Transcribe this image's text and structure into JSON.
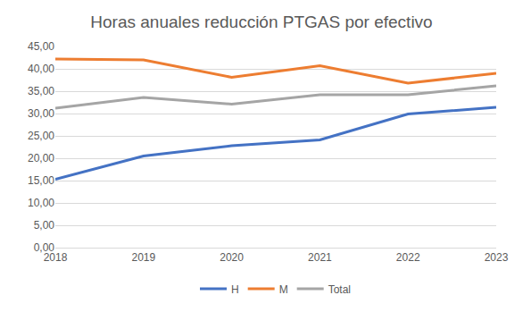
{
  "chart_data": {
    "type": "line",
    "title": "Horas anuales reducción PTGAS por efectivo",
    "categories": [
      "2018",
      "2019",
      "2020",
      "2021",
      "2022",
      "2023"
    ],
    "series": [
      {
        "name": "H",
        "color": "#4472c4",
        "values": [
          15.3,
          20.5,
          22.8,
          24.1,
          29.9,
          31.4
        ]
      },
      {
        "name": "M",
        "color": "#ed7d31",
        "values": [
          42.2,
          42.0,
          38.1,
          40.7,
          36.8,
          39.0
        ]
      },
      {
        "name": "Total",
        "color": "#a5a5a5",
        "values": [
          31.2,
          33.6,
          32.1,
          34.2,
          34.2,
          36.2
        ]
      }
    ],
    "ylim": [
      0,
      45
    ],
    "yticks": [
      {
        "value": 0,
        "label": "0,00"
      },
      {
        "value": 5,
        "label": "5,00"
      },
      {
        "value": 10,
        "label": "10,00"
      },
      {
        "value": 15,
        "label": "15,00"
      },
      {
        "value": 20,
        "label": "20,00"
      },
      {
        "value": 25,
        "label": "25,00"
      },
      {
        "value": 30,
        "label": "30,00"
      },
      {
        "value": 35,
        "label": "35,00"
      },
      {
        "value": 40,
        "label": "40,00"
      },
      {
        "value": 45,
        "label": "45,00"
      }
    ],
    "grid": true,
    "legend": "bottom"
  }
}
